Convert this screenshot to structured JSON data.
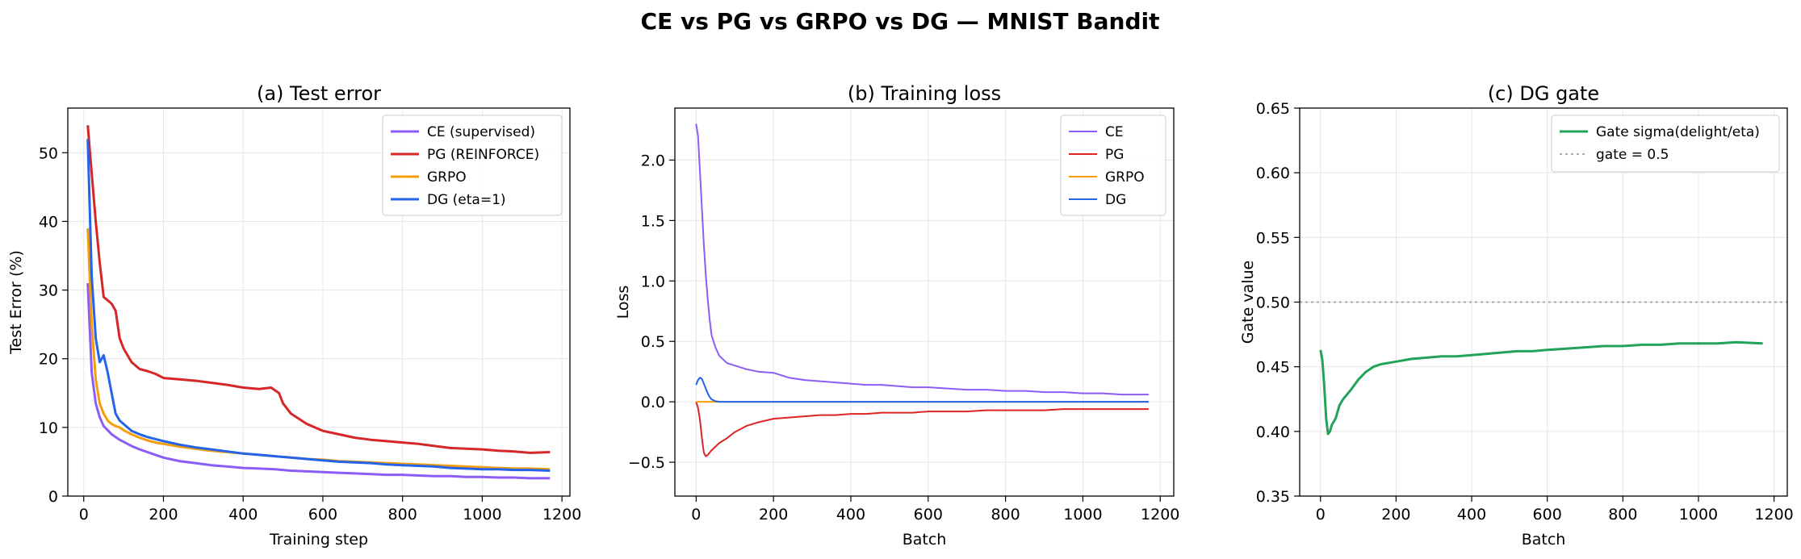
{
  "figure": {
    "suptitle": "CE vs PG vs GRPO vs DG — MNIST Bandit"
  },
  "chart_data": [
    {
      "type": "line",
      "title": "(a) Test error",
      "xlabel": "Training step",
      "ylabel": "Test Error (%)",
      "xlim": [
        -40,
        1220
      ],
      "ylim": [
        0,
        56.5
      ],
      "xticks": [
        "0",
        "200",
        "400",
        "600",
        "800",
        "1000",
        "1200"
      ],
      "yticks": [
        "0",
        "10",
        "20",
        "30",
        "40",
        "50"
      ],
      "grid": true,
      "legend_position": "upper right",
      "series": [
        {
          "name": "CE (supervised)",
          "color": "#8b5cf6",
          "x": [
            10,
            20,
            30,
            40,
            50,
            60,
            70,
            80,
            90,
            100,
            120,
            140,
            160,
            180,
            200,
            240,
            280,
            320,
            360,
            400,
            440,
            480,
            520,
            560,
            600,
            640,
            680,
            720,
            760,
            800,
            840,
            880,
            920,
            960,
            1000,
            1040,
            1080,
            1120,
            1170
          ],
          "y": [
            31,
            18,
            13.5,
            11.5,
            10.2,
            9.6,
            9.0,
            8.6,
            8.2,
            7.9,
            7.3,
            6.8,
            6.4,
            6.0,
            5.6,
            5.1,
            4.8,
            4.5,
            4.3,
            4.1,
            4.0,
            3.9,
            3.7,
            3.6,
            3.5,
            3.4,
            3.3,
            3.2,
            3.1,
            3.1,
            3.0,
            2.9,
            2.9,
            2.8,
            2.8,
            2.7,
            2.7,
            2.6,
            2.6
          ]
        },
        {
          "name": "PG (REINFORCE)",
          "color": "#d62728",
          "x": [
            10,
            20,
            30,
            40,
            50,
            60,
            70,
            80,
            90,
            100,
            120,
            140,
            160,
            180,
            200,
            240,
            280,
            320,
            360,
            400,
            440,
            470,
            490,
            500,
            520,
            560,
            600,
            640,
            680,
            720,
            760,
            800,
            840,
            880,
            920,
            960,
            1000,
            1040,
            1080,
            1120,
            1170
          ],
          "y": [
            54,
            47,
            40,
            34,
            29,
            28.5,
            28,
            27,
            23,
            21.5,
            19.5,
            18.5,
            18.2,
            17.8,
            17.2,
            17,
            16.8,
            16.5,
            16.2,
            15.8,
            15.6,
            15.8,
            15.0,
            13.5,
            12.0,
            10.5,
            9.5,
            9.0,
            8.5,
            8.2,
            8.0,
            7.8,
            7.6,
            7.3,
            7.0,
            6.9,
            6.8,
            6.6,
            6.5,
            6.3,
            6.4
          ]
        },
        {
          "name": "GRPO",
          "color": "#f59e0b",
          "x": [
            10,
            20,
            30,
            40,
            50,
            60,
            70,
            80,
            90,
            100,
            120,
            140,
            160,
            180,
            200,
            240,
            280,
            320,
            360,
            400,
            440,
            480,
            520,
            560,
            600,
            640,
            680,
            720,
            760,
            800,
            840,
            880,
            920,
            960,
            1000,
            1040,
            1080,
            1120,
            1170
          ],
          "y": [
            39,
            25,
            17,
            13.5,
            12,
            11,
            10.5,
            10.2,
            10.0,
            9.6,
            9.0,
            8.5,
            8.1,
            7.8,
            7.6,
            7.2,
            6.9,
            6.6,
            6.4,
            6.2,
            6.0,
            5.8,
            5.6,
            5.4,
            5.3,
            5.1,
            5.0,
            4.9,
            4.8,
            4.7,
            4.6,
            4.5,
            4.4,
            4.3,
            4.2,
            4.1,
            4.0,
            4.0,
            3.9
          ]
        },
        {
          "name": "DG (eta=1)",
          "color": "#2563eb",
          "x": [
            10,
            20,
            30,
            40,
            50,
            60,
            70,
            80,
            90,
            100,
            120,
            140,
            160,
            180,
            200,
            240,
            280,
            320,
            360,
            400,
            440,
            480,
            520,
            560,
            600,
            640,
            680,
            720,
            760,
            800,
            840,
            880,
            920,
            960,
            1000,
            1040,
            1080,
            1120,
            1170
          ],
          "y": [
            52,
            32,
            23,
            19.5,
            20.5,
            18,
            15,
            12,
            11,
            10.5,
            9.5,
            9.0,
            8.6,
            8.3,
            8.0,
            7.5,
            7.1,
            6.8,
            6.5,
            6.2,
            6.0,
            5.8,
            5.6,
            5.4,
            5.2,
            5.0,
            4.9,
            4.8,
            4.6,
            4.5,
            4.4,
            4.3,
            4.1,
            4.0,
            3.9,
            3.9,
            3.8,
            3.8,
            3.7
          ]
        }
      ]
    },
    {
      "type": "line",
      "title": "(b) Training loss",
      "xlabel": "Batch",
      "ylabel": "Loss",
      "xlim": [
        -55,
        1235
      ],
      "ylim": [
        -0.78,
        2.43
      ],
      "xticks": [
        "0",
        "200",
        "400",
        "600",
        "800",
        "1000",
        "1200"
      ],
      "yticks": [
        "−0.5",
        "0.0",
        "0.5",
        "1.0",
        "1.5",
        "2.0"
      ],
      "grid": true,
      "legend_position": "upper right",
      "series": [
        {
          "name": "CE",
          "color": "#8b5cf6",
          "x": [
            0,
            5,
            10,
            15,
            20,
            25,
            30,
            35,
            40,
            50,
            60,
            80,
            100,
            130,
            160,
            200,
            240,
            280,
            320,
            360,
            400,
            440,
            480,
            520,
            560,
            600,
            650,
            700,
            750,
            800,
            850,
            900,
            950,
            1000,
            1050,
            1100,
            1170
          ],
          "y": [
            2.3,
            2.2,
            1.9,
            1.6,
            1.3,
            1.05,
            0.85,
            0.68,
            0.55,
            0.45,
            0.38,
            0.32,
            0.3,
            0.27,
            0.25,
            0.24,
            0.2,
            0.18,
            0.17,
            0.16,
            0.15,
            0.14,
            0.14,
            0.13,
            0.12,
            0.12,
            0.11,
            0.1,
            0.1,
            0.09,
            0.09,
            0.08,
            0.08,
            0.07,
            0.07,
            0.06,
            0.06
          ]
        },
        {
          "name": "PG",
          "color": "#dc2626",
          "x": [
            0,
            5,
            10,
            15,
            20,
            25,
            30,
            35,
            40,
            50,
            60,
            80,
            100,
            130,
            160,
            200,
            240,
            280,
            320,
            360,
            400,
            440,
            480,
            520,
            560,
            600,
            650,
            700,
            750,
            800,
            850,
            900,
            950,
            1000,
            1050,
            1100,
            1170
          ],
          "y": [
            0,
            -0.05,
            -0.15,
            -0.3,
            -0.42,
            -0.45,
            -0.44,
            -0.42,
            -0.4,
            -0.37,
            -0.34,
            -0.3,
            -0.25,
            -0.2,
            -0.17,
            -0.14,
            -0.13,
            -0.12,
            -0.11,
            -0.11,
            -0.1,
            -0.1,
            -0.09,
            -0.09,
            -0.09,
            -0.08,
            -0.08,
            -0.08,
            -0.07,
            -0.07,
            -0.07,
            -0.07,
            -0.06,
            -0.06,
            -0.06,
            -0.06,
            -0.06
          ]
        },
        {
          "name": "GRPO",
          "color": "#f59e0b",
          "x": [
            0,
            20,
            40,
            60,
            100,
            200,
            400,
            600,
            800,
            1000,
            1170
          ],
          "y": [
            0,
            0,
            0,
            0,
            0,
            0,
            0,
            0,
            0,
            0,
            0
          ]
        },
        {
          "name": "DG",
          "color": "#2563eb",
          "x": [
            0,
            5,
            10,
            15,
            20,
            25,
            30,
            35,
            40,
            50,
            60,
            80,
            100,
            200,
            400,
            600,
            800,
            1000,
            1170
          ],
          "y": [
            0.14,
            0.18,
            0.2,
            0.19,
            0.15,
            0.11,
            0.07,
            0.04,
            0.02,
            0.005,
            0,
            0,
            0,
            0,
            0,
            0,
            0,
            0,
            0
          ]
        }
      ]
    },
    {
      "type": "line",
      "title": "(c) DG gate",
      "xlabel": "Batch",
      "ylabel": "Gate value",
      "xlim": [
        -55,
        1235
      ],
      "ylim": [
        0.35,
        0.65
      ],
      "xticks": [
        "0",
        "200",
        "400",
        "600",
        "800",
        "1000",
        "1200"
      ],
      "yticks": [
        "0.35",
        "0.40",
        "0.45",
        "0.50",
        "0.55",
        "0.60",
        "0.65"
      ],
      "grid": true,
      "legend_position": "upper right",
      "reference_line": {
        "label": "gate = 0.5",
        "y": 0.5,
        "color": "#aaaaaa"
      },
      "series": [
        {
          "name": "Gate sigma(delight/eta)",
          "color": "#22a35a",
          "x": [
            0,
            5,
            10,
            15,
            20,
            25,
            30,
            40,
            50,
            60,
            80,
            100,
            120,
            140,
            160,
            200,
            240,
            280,
            320,
            360,
            400,
            440,
            480,
            520,
            560,
            600,
            650,
            700,
            750,
            800,
            850,
            900,
            950,
            1000,
            1050,
            1100,
            1170
          ],
          "y": [
            0.463,
            0.455,
            0.435,
            0.41,
            0.398,
            0.4,
            0.405,
            0.41,
            0.42,
            0.425,
            0.432,
            0.44,
            0.446,
            0.45,
            0.452,
            0.454,
            0.456,
            0.457,
            0.458,
            0.458,
            0.459,
            0.46,
            0.461,
            0.462,
            0.462,
            0.463,
            0.464,
            0.465,
            0.466,
            0.466,
            0.467,
            0.467,
            0.468,
            0.468,
            0.468,
            0.469,
            0.468
          ]
        }
      ]
    }
  ]
}
